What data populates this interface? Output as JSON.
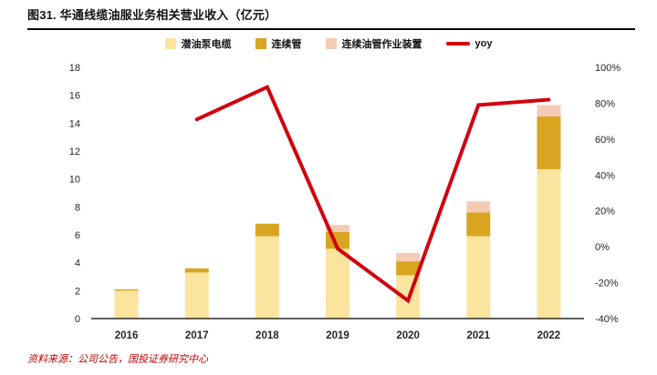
{
  "header": {
    "title": "图31. 华通线缆油服业务相关营业收入（亿元）"
  },
  "footer": {
    "source": "资料来源：公司公告，国投证券研究中心"
  },
  "colors": {
    "title_underline": "#000000",
    "axis_text": "#262626",
    "axis_line": "#000000",
    "source_text": "#C00000",
    "bar_light_yellow": "#FBE49E",
    "bar_gold": "#D9A521",
    "bar_pink": "#F4CBB6",
    "line_red": "#D2000F"
  },
  "chart_data": {
    "type": "bar",
    "title": "图31. 华通线缆油服业务相关营业收入（亿元）",
    "categories": [
      "2016",
      "2017",
      "2018",
      "2019",
      "2020",
      "2021",
      "2022"
    ],
    "series": [
      {
        "name": "潜油泵电缆",
        "type": "bar",
        "axis": "left",
        "color": "#FBE49E",
        "values": [
          2.0,
          3.3,
          5.9,
          5.0,
          3.1,
          5.9,
          10.7
        ]
      },
      {
        "name": "连续管",
        "type": "bar",
        "axis": "left",
        "color": "#D9A521",
        "values": [
          0.1,
          0.3,
          0.9,
          1.2,
          1.0,
          1.7,
          3.8
        ]
      },
      {
        "name": "连续油管作业装置",
        "type": "bar",
        "axis": "left",
        "color": "#F4CBB6",
        "values": [
          0,
          0,
          0,
          0.5,
          0.6,
          0.8,
          0.8
        ]
      },
      {
        "name": "yoy",
        "type": "line",
        "axis": "right",
        "color": "#D2000F",
        "values": [
          null,
          71,
          89,
          -1,
          -30,
          79,
          82
        ]
      }
    ],
    "left_axis": {
      "min": 0,
      "max": 18,
      "step": 2
    },
    "right_axis": {
      "min": -40,
      "max": 100,
      "step": 20,
      "unit": "%"
    },
    "legend_position": "top",
    "grid": false,
    "bar_mode": "stacked"
  }
}
